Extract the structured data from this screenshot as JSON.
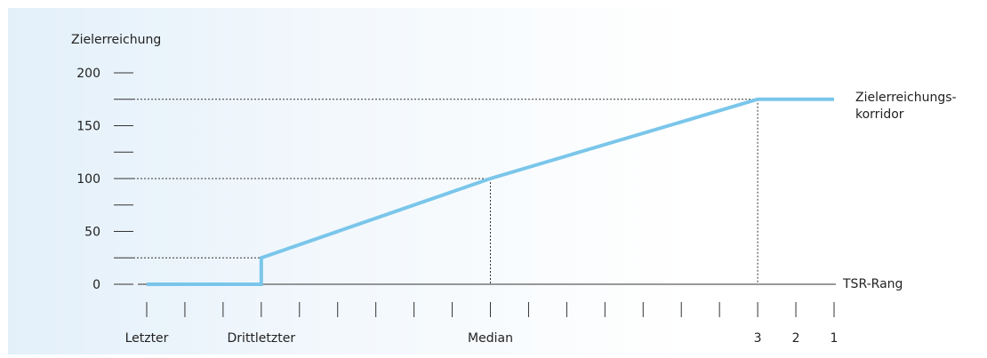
{
  "chart_data": {
    "type": "line",
    "ylabel": "Zielerreichung",
    "xlabel": "TSR-Rang",
    "ylim": [
      0,
      200
    ],
    "y_ticks": [
      0,
      25,
      50,
      75,
      100,
      125,
      150,
      175,
      200
    ],
    "y_tick_labels": [
      {
        "value": 0,
        "label": "0"
      },
      {
        "value": 50,
        "label": "50"
      },
      {
        "value": 100,
        "label": "100"
      },
      {
        "value": 150,
        "label": "150"
      },
      {
        "value": 200,
        "label": "200"
      }
    ],
    "x_positions": 19,
    "x_tick_labels": [
      {
        "pos": 0,
        "label": "Letzter"
      },
      {
        "pos": 3,
        "label": "Drittletzter"
      },
      {
        "pos": 9,
        "label": "Median"
      },
      {
        "pos": 16,
        "label": "3"
      },
      {
        "pos": 17,
        "label": "2"
      },
      {
        "pos": 18,
        "label": "1"
      }
    ],
    "series": [
      {
        "color": "#7ac6ea",
        "points": [
          {
            "x": 0,
            "y": 0
          },
          {
            "x": 3,
            "y": 0
          },
          {
            "x": 3,
            "y": 25
          },
          {
            "x": 9,
            "y": 100
          },
          {
            "x": 16,
            "y": 175
          },
          {
            "x": 18,
            "y": 175
          }
        ]
      }
    ],
    "reference_lines": [
      {
        "x": 3,
        "y": 25
      },
      {
        "x": 9,
        "y": 100
      },
      {
        "x": 16,
        "y": 175
      }
    ],
    "annotation": [
      "Zielerreichungs-",
      "korridor"
    ],
    "grid": false,
    "legend": "none"
  }
}
